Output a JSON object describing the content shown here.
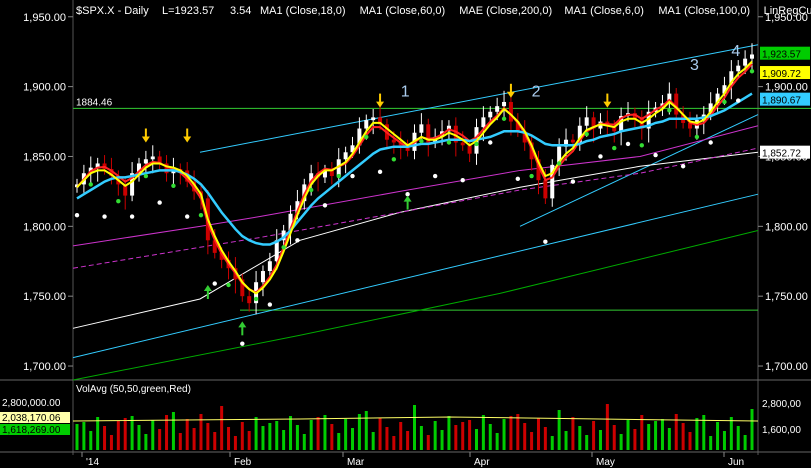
{
  "header": {
    "symbol": "$SPX.X - Daily",
    "last_label": "L=1923.57",
    "change": "3.54",
    "studies": [
      "MA1 (Close,18,0)",
      "MA1 (Close,60,0)",
      "MAE (Close,200,0)",
      "MA1 (Close,6,0)",
      "MA1 (Close,100,0)",
      "LinRegCu..."
    ]
  },
  "left_axis_labels": [
    "1,950.00",
    "1,900.00",
    "1,850.00",
    "1,800.00",
    "1,750.00",
    "1,700.00"
  ],
  "right_axis_labels": [
    "1,950.00",
    "1,900.00",
    "1,850.00",
    "1,800.00",
    "1,750.00",
    "1,700.00"
  ],
  "price_tags": [
    {
      "text": "1,923.57",
      "value": 1923.57,
      "bg": "#00cc00",
      "fg": "#000000"
    },
    {
      "text": "1,909.72",
      "value": 1909.72,
      "bg": "#ffff00",
      "fg": "#000000"
    },
    {
      "text": "1,890.67",
      "value": 1890.67,
      "bg": "#33ccff",
      "fg": "#000000"
    },
    {
      "text": "1,852.72",
      "value": 1852.72,
      "bg": "#ffffff",
      "fg": "#000000"
    }
  ],
  "horizontal_level": {
    "text": "1884.46",
    "value": 1884.46
  },
  "wave_labels": [
    "1",
    "2",
    "3",
    "4"
  ],
  "x_labels": [
    "'14",
    "Feb",
    "Mar",
    "Apr",
    "May",
    "Jun"
  ],
  "volume_panel": {
    "title": "VolAvg (50,50,green,Red)",
    "left_labels": [
      "2,800,000.00",
      "2,038,170.06",
      "1,618,269.00"
    ],
    "right_labels": [
      "2,800,00",
      "1,600,00"
    ]
  },
  "colors": {
    "background": "#000000",
    "up_candle": "#ffffff",
    "down_candle": "#cc0000",
    "ma18": "#33ccff",
    "ma6": "#ffff00",
    "ma100": "#ffffff",
    "ma200": "#00aa00",
    "mae": "#cc33cc",
    "channel": "#33ccff",
    "level": "#33cc33",
    "arrow_down": "#ffcc00",
    "arrow_up": "#33cc33"
  },
  "chart_data": {
    "type": "candlestick",
    "y_range": [
      1690,
      1962
    ],
    "series": [
      {
        "name": "Price (approx close)",
        "values": [
          1830,
          1838,
          1842,
          1845,
          1841,
          1836,
          1830,
          1822,
          1838,
          1845,
          1848,
          1850,
          1845,
          1838,
          1841,
          1840,
          1832,
          1825,
          1820,
          1790,
          1781,
          1776,
          1770,
          1762,
          1750,
          1745,
          1760,
          1768,
          1775,
          1790,
          1797,
          1809,
          1818,
          1830,
          1838,
          1835,
          1840,
          1836,
          1848,
          1853,
          1858,
          1870,
          1876,
          1878,
          1873,
          1862,
          1860,
          1858,
          1854,
          1867,
          1873,
          1860,
          1864,
          1868,
          1872,
          1860,
          1858,
          1852,
          1871,
          1878,
          1882,
          1886,
          1889,
          1875,
          1868,
          1860,
          1848,
          1833,
          1820,
          1844,
          1857,
          1862,
          1860,
          1872,
          1878,
          1870,
          1875,
          1872,
          1868,
          1879,
          1881,
          1877,
          1870,
          1882,
          1885,
          1888,
          1895,
          1880,
          1874,
          1870,
          1876,
          1880,
          1888,
          1895,
          1901,
          1911,
          1915,
          1920,
          1923
        ]
      },
      {
        "name": "MA 6",
        "values": [
          1828,
          1833,
          1838,
          1840,
          1840,
          1837,
          1833,
          1829,
          1832,
          1837,
          1842,
          1845,
          1845,
          1843,
          1842,
          1840,
          1836,
          1830,
          1823,
          1805,
          1793,
          1783,
          1775,
          1768,
          1760,
          1755,
          1752,
          1756,
          1762,
          1770,
          1782,
          1795,
          1808,
          1820,
          1830,
          1836,
          1840,
          1840,
          1843,
          1846,
          1852,
          1860,
          1868,
          1874,
          1874,
          1870,
          1866,
          1862,
          1858,
          1861,
          1864,
          1862,
          1862,
          1864,
          1867,
          1865,
          1862,
          1858,
          1861,
          1867,
          1873,
          1878,
          1884,
          1880,
          1875,
          1868,
          1858,
          1846,
          1836,
          1838,
          1846,
          1852,
          1856,
          1863,
          1869,
          1871,
          1873,
          1872,
          1871,
          1875,
          1877,
          1877,
          1874,
          1877,
          1881,
          1884,
          1889,
          1885,
          1880,
          1875,
          1874,
          1876,
          1882,
          1889,
          1895,
          1903,
          1909,
          1913,
          1918
        ]
      },
      {
        "name": "MA 18",
        "values": [
          1820,
          1823,
          1826,
          1829,
          1832,
          1834,
          1835,
          1835,
          1836,
          1837,
          1838,
          1839,
          1840,
          1840,
          1840,
          1839,
          1837,
          1834,
          1830,
          1824,
          1817,
          1810,
          1804,
          1798,
          1793,
          1790,
          1788,
          1787,
          1787,
          1789,
          1792,
          1797,
          1803,
          1809,
          1815,
          1820,
          1824,
          1828,
          1832,
          1836,
          1840,
          1844,
          1848,
          1852,
          1855,
          1856,
          1857,
          1857,
          1857,
          1858,
          1859,
          1859,
          1860,
          1861,
          1862,
          1862,
          1862,
          1861,
          1862,
          1863,
          1864,
          1866,
          1868,
          1868,
          1868,
          1867,
          1865,
          1862,
          1859,
          1858,
          1858,
          1858,
          1858,
          1859,
          1861,
          1862,
          1864,
          1865,
          1866,
          1868,
          1869,
          1870,
          1871,
          1872,
          1874,
          1875,
          1877,
          1877,
          1877,
          1877,
          1877,
          1878,
          1879,
          1881,
          1883,
          1886,
          1889,
          1892,
          1895
        ]
      }
    ],
    "horizontal_lines": [
      1884.46,
      1740
    ],
    "annotations": [
      "1",
      "2",
      "3",
      "4"
    ]
  }
}
